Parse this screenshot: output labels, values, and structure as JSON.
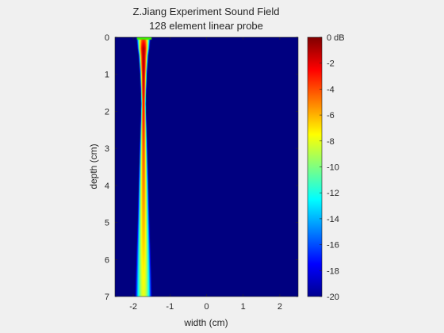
{
  "chart_data": {
    "type": "heatmap",
    "title": "Z.Jiang Experiment Sound Field",
    "subtitle": "128 element linear probe",
    "xlabel": "width (cm)",
    "ylabel": "depth (cm)",
    "xlim": [
      -2.5,
      2.5
    ],
    "ylim": [
      0,
      7
    ],
    "y_reversed": true,
    "x_ticks": [
      -2,
      -1,
      0,
      1,
      2
    ],
    "x_tick_labels": [
      "-2",
      "-1",
      "0",
      "1",
      "2"
    ],
    "y_ticks": [
      0,
      1,
      2,
      3,
      4,
      5,
      6,
      7
    ],
    "y_tick_labels": [
      "0",
      "1",
      "2",
      "3",
      "4",
      "5",
      "6",
      "7"
    ],
    "colormap": "jet",
    "clim": [
      -20,
      0
    ],
    "colorbar_ticks": [
      0,
      -2,
      -4,
      -6,
      -8,
      -10,
      -12,
      -14,
      -16,
      -18,
      -20
    ],
    "colorbar_tick_labels": [
      "0 dB",
      "-2",
      "-4",
      "-6",
      "-8",
      "-10",
      "-12",
      "-14",
      "-16",
      "-18",
      "-20"
    ],
    "beam": {
      "aperture_x": [
        -1.9,
        -1.5
      ],
      "center_x": [
        {
          "depth": 0,
          "x": -1.72
        },
        {
          "depth": 7,
          "x": -1.72
        }
      ],
      "half_width_cm": [
        {
          "depth": 0,
          "w": 0.22
        },
        {
          "depth": 0.5,
          "w": 0.14
        },
        {
          "depth": 1.0,
          "w": 0.1
        },
        {
          "depth": 1.8,
          "w": 0.07
        },
        {
          "depth": 3.0,
          "w": 0.12
        },
        {
          "depth": 5.0,
          "w": 0.2
        },
        {
          "depth": 7.0,
          "w": 0.3
        }
      ],
      "peak_db": [
        {
          "depth": 0,
          "db": -4
        },
        {
          "depth": 0.3,
          "db": -1
        },
        {
          "depth": 1.0,
          "db": -1
        },
        {
          "depth": 1.8,
          "db": -2
        },
        {
          "depth": 3.0,
          "db": -4
        },
        {
          "depth": 5.0,
          "db": -6
        },
        {
          "depth": 7.0,
          "db": -8
        }
      ]
    }
  }
}
